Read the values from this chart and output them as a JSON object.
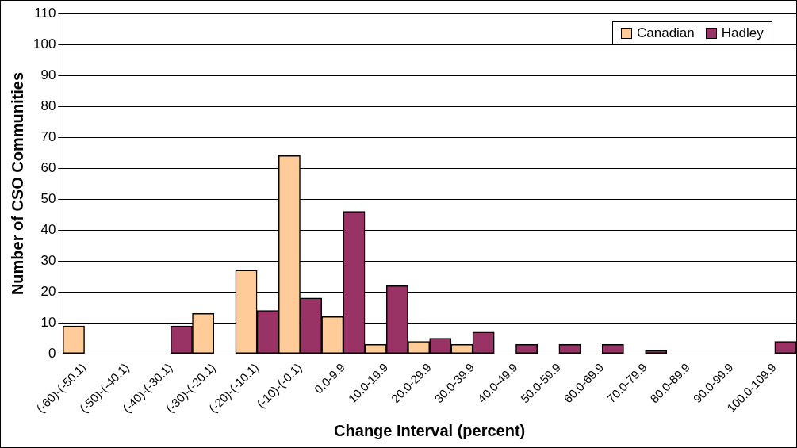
{
  "chart_data": {
    "type": "bar",
    "xlabel": "Change Interval (percent)",
    "ylabel": "Number of CSO Communities",
    "categories": [
      "(-60)-(-50.1)",
      "(-50)-(-40.1)",
      "(-40)-(-30.1)",
      "(-30)-(-20.1)",
      "(-20)-(-10.1)",
      "(-10)-(-0.1)",
      "0.0-9.9",
      "10.0-19.9",
      "20.0-29.9",
      "30.0-39.9",
      "40.0-49.9",
      "50.0-59.9",
      "60.0-69.9",
      "70.0-79.9",
      "80.0-89.9",
      "90.0-99.9",
      "100.0-109.9"
    ],
    "series": [
      {
        "name": "Canadian",
        "color": "#ffcc99",
        "values": [
          9,
          0,
          0,
          13,
          27,
          64,
          12,
          3,
          4,
          3,
          0,
          0,
          0,
          0,
          0,
          0,
          0
        ]
      },
      {
        "name": "Hadley",
        "color": "#993366",
        "values": [
          0,
          0,
          9,
          0,
          14,
          18,
          46,
          22,
          5,
          7,
          3,
          3,
          3,
          1,
          0,
          0,
          4
        ]
      }
    ],
    "ylim": [
      0,
      110
    ],
    "yticks": [
      0,
      10,
      20,
      30,
      40,
      50,
      60,
      70,
      80,
      90,
      100,
      110
    ],
    "grid": "y",
    "legend": "top right"
  }
}
